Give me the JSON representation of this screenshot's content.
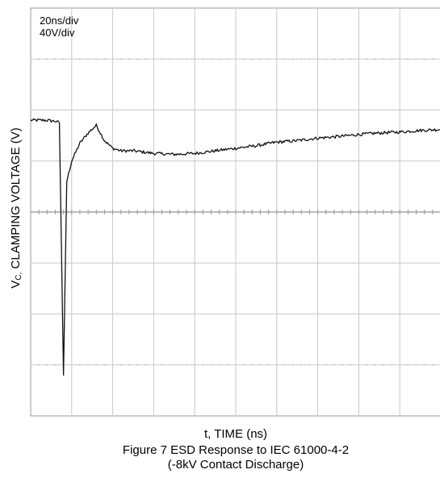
{
  "chart_data": {
    "type": "line",
    "title": "",
    "xlabel": "t, TIME (ns)",
    "ylabel": {
      "prefix": "V",
      "subscript": "C,",
      "text": " CLAMPING VOLTAGE (V)"
    },
    "scale_notes": [
      "20ns/div",
      "40V/div"
    ],
    "grid": true,
    "x_divisions": 10,
    "y_divisions": 8,
    "xlim": [
      0,
      10
    ],
    "ylim": [
      -3.8,
      4.2
    ],
    "series": [
      {
        "x": [
          0,
          0.35,
          0.6,
          0.7,
          0.75,
          0.8,
          0.88,
          1.0,
          1.2,
          1.4,
          1.6,
          1.8,
          2.0,
          2.2,
          2.5,
          3.0,
          3.5,
          4.0,
          4.5,
          5.0,
          5.5,
          6.0,
          6.5,
          7.0,
          7.5,
          8.0,
          8.5,
          9.0,
          9.5,
          10.0
        ],
        "y": [
          2.0,
          2.0,
          1.98,
          1.95,
          -0.5,
          -3.0,
          0.8,
          1.2,
          1.55,
          1.75,
          1.9,
          1.6,
          1.45,
          1.4,
          1.4,
          1.35,
          1.33,
          1.35,
          1.4,
          1.45,
          1.5,
          1.57,
          1.6,
          1.65,
          1.68,
          1.72,
          1.75,
          1.77,
          1.8,
          1.82
        ]
      }
    ]
  },
  "captions": {
    "figure": "Figure 7 ESD Response to IEC 61000-4-2",
    "condition": "(-8kV Contact Discharge)"
  }
}
